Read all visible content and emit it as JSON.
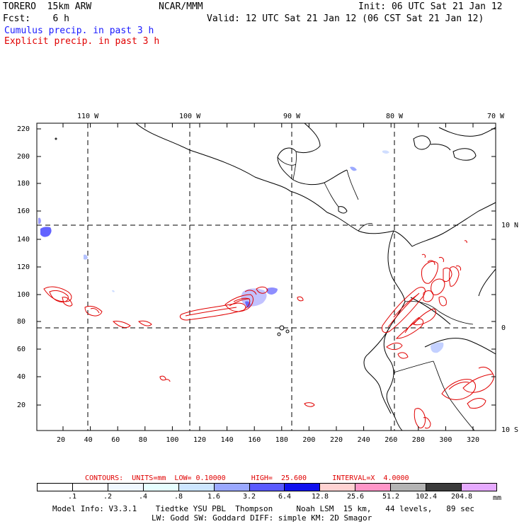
{
  "header": {
    "model": "TORERO  15km ARW",
    "center": "NCAR/MMM",
    "init": "Init: 06 UTC Sat 21 Jan 12",
    "fcst": "Fcst:    6 h",
    "valid": "Valid: 12 UTC Sat 21 Jan 12 (06 CST Sat 21 Jan 12)",
    "field1": "Cumulus precip. in past 3 h",
    "field2": "Explicit precip. in past 3 h",
    "field1_color": "#1a1aff",
    "field2_color": "#e00000"
  },
  "map": {
    "lon_labels": [
      "110 W",
      "100 W",
      "90 W",
      "80 W",
      "70 W"
    ],
    "lat_labels": [
      "10 N",
      "0",
      "10 S"
    ],
    "y_ticks": [
      "220",
      "200",
      "180",
      "160",
      "140",
      "120",
      "100",
      "80",
      "60",
      "40",
      "20"
    ],
    "x_ticks": [
      "20",
      "40",
      "60",
      "80",
      "100",
      "120",
      "140",
      "160",
      "180",
      "200",
      "220",
      "240",
      "260",
      "280",
      "300",
      "320"
    ]
  },
  "contours": {
    "text": "CONTOURS:  UNITS=mm  LOW= 0.10000      HIGH=  25.600      INTERVAL=X  4.0000"
  },
  "colorbar": {
    "labels": [
      ".1",
      ".2",
      ".4",
      ".8",
      "1.6",
      "3.2",
      "6.4",
      "12.8",
      "25.6",
      "51.2",
      "102.4",
      "204.8"
    ],
    "unit": "mm",
    "colors": [
      "#ffffff",
      "#ffffff",
      "#f0f8ff",
      "#e6ffff",
      "#cde6ff",
      "#9aa8ff",
      "#5a5aff",
      "#1010ee",
      "#ffd2d2",
      "#ff96c8",
      "#b4b4b4",
      "#3c3c3c",
      "#e6aaff"
    ]
  },
  "model_info": {
    "line1": "Model Info: V3.3.1    Tiedtke YSU PBL  Thompson     Noah LSM  15 km,   44 levels,   89 sec",
    "line2": "LW: Godd SW: Goddard DIFF: simple KM: 2D Smagor"
  }
}
